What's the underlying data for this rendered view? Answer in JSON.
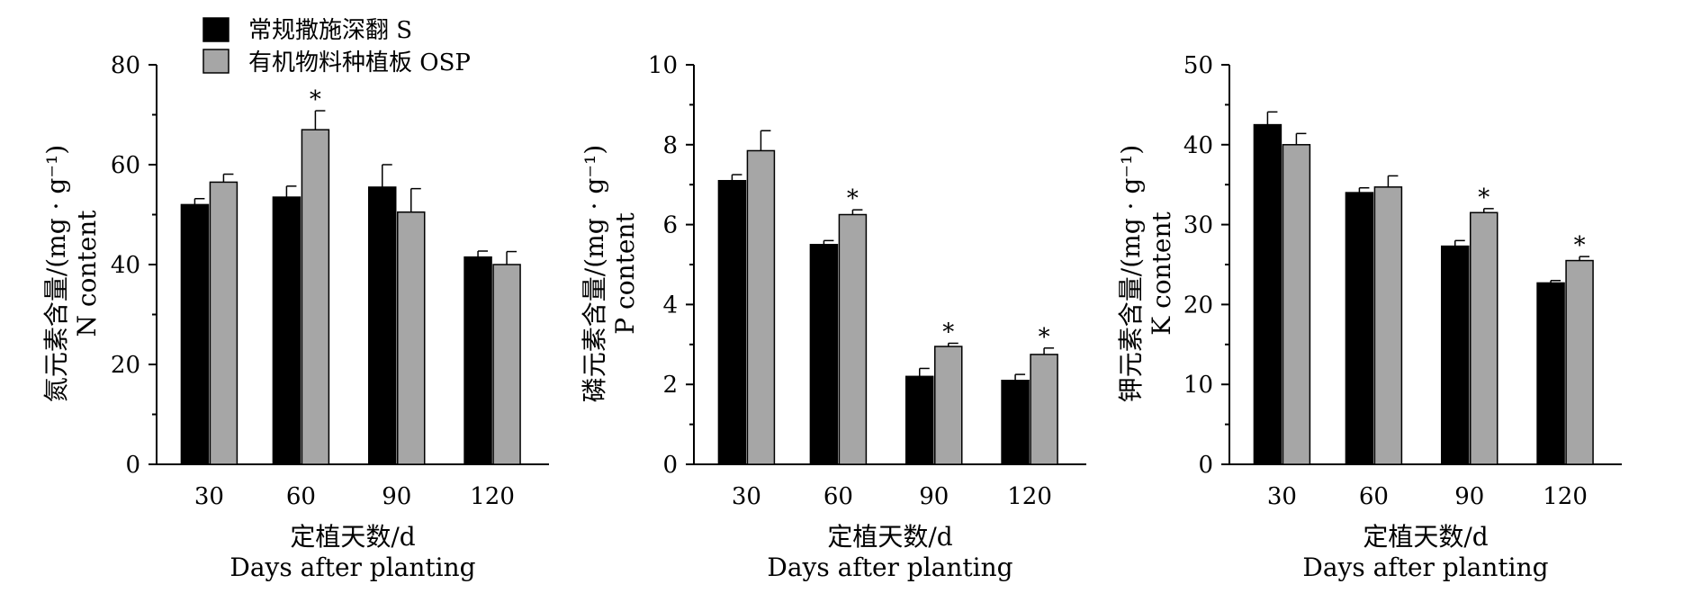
{
  "legend": {
    "items": [
      {
        "label": "常规撒施深翻 S",
        "color": "#000000"
      },
      {
        "label": "有机物料种植板 OSP",
        "color": "#a6a6a6"
      }
    ]
  },
  "chart_data": [
    {
      "type": "bar",
      "categories": [
        "30",
        "60",
        "90",
        "120"
      ],
      "series": [
        {
          "name": "常规撒施深翻 S",
          "color": "#000000",
          "values": [
            52,
            53.5,
            55.5,
            41.5
          ],
          "errors": [
            1.2,
            2.2,
            4.5,
            1.2
          ]
        },
        {
          "name": "有机物料种植板 OSP",
          "color": "#a6a6a6",
          "values": [
            56.5,
            67,
            50.5,
            40
          ],
          "errors": [
            1.6,
            3.8,
            4.7,
            2.6
          ]
        }
      ],
      "significance": [
        false,
        true,
        false,
        false
      ],
      "ylim": [
        0,
        80
      ],
      "yticks": [
        0,
        20,
        40,
        60,
        80
      ],
      "ylabel": [
        "氮元素含量/(mg · g⁻¹)",
        "N content"
      ],
      "xlabel": [
        "定植天数/d",
        "Days after planting"
      ]
    },
    {
      "type": "bar",
      "categories": [
        "30",
        "60",
        "90",
        "120"
      ],
      "series": [
        {
          "name": "常规撒施深翻 S",
          "color": "#000000",
          "values": [
            7.1,
            5.5,
            2.2,
            2.1
          ],
          "errors": [
            0.15,
            0.1,
            0.2,
            0.15
          ]
        },
        {
          "name": "有机物料种植板 OSP",
          "color": "#a6a6a6",
          "values": [
            7.85,
            6.25,
            2.95,
            2.75
          ],
          "errors": [
            0.5,
            0.12,
            0.08,
            0.16
          ]
        }
      ],
      "significance": [
        false,
        true,
        true,
        true
      ],
      "ylim": [
        0,
        10
      ],
      "yticks": [
        0,
        2,
        4,
        6,
        8,
        10
      ],
      "ylabel": [
        "磷元素含量/(mg · g⁻¹)",
        "P content"
      ],
      "xlabel": [
        "定植天数/d",
        "Days after planting"
      ]
    },
    {
      "type": "bar",
      "categories": [
        "30",
        "60",
        "90",
        "120"
      ],
      "series": [
        {
          "name": "常规撒施深翻 S",
          "color": "#000000",
          "values": [
            42.5,
            34,
            27.3,
            22.7
          ],
          "errors": [
            1.6,
            0.6,
            0.7,
            0.3
          ]
        },
        {
          "name": "有机物料种植板 OSP",
          "color": "#a6a6a6",
          "values": [
            40,
            34.7,
            31.5,
            25.5
          ],
          "errors": [
            1.4,
            1.4,
            0.5,
            0.5
          ]
        }
      ],
      "significance": [
        false,
        false,
        true,
        true
      ],
      "ylim": [
        0,
        50
      ],
      "yticks": [
        0,
        10,
        20,
        30,
        40,
        50
      ],
      "ylabel": [
        "钾元素含量/(mg · g⁻¹)",
        "K content"
      ],
      "xlabel": [
        "定植天数/d",
        "Days after planting"
      ]
    }
  ]
}
